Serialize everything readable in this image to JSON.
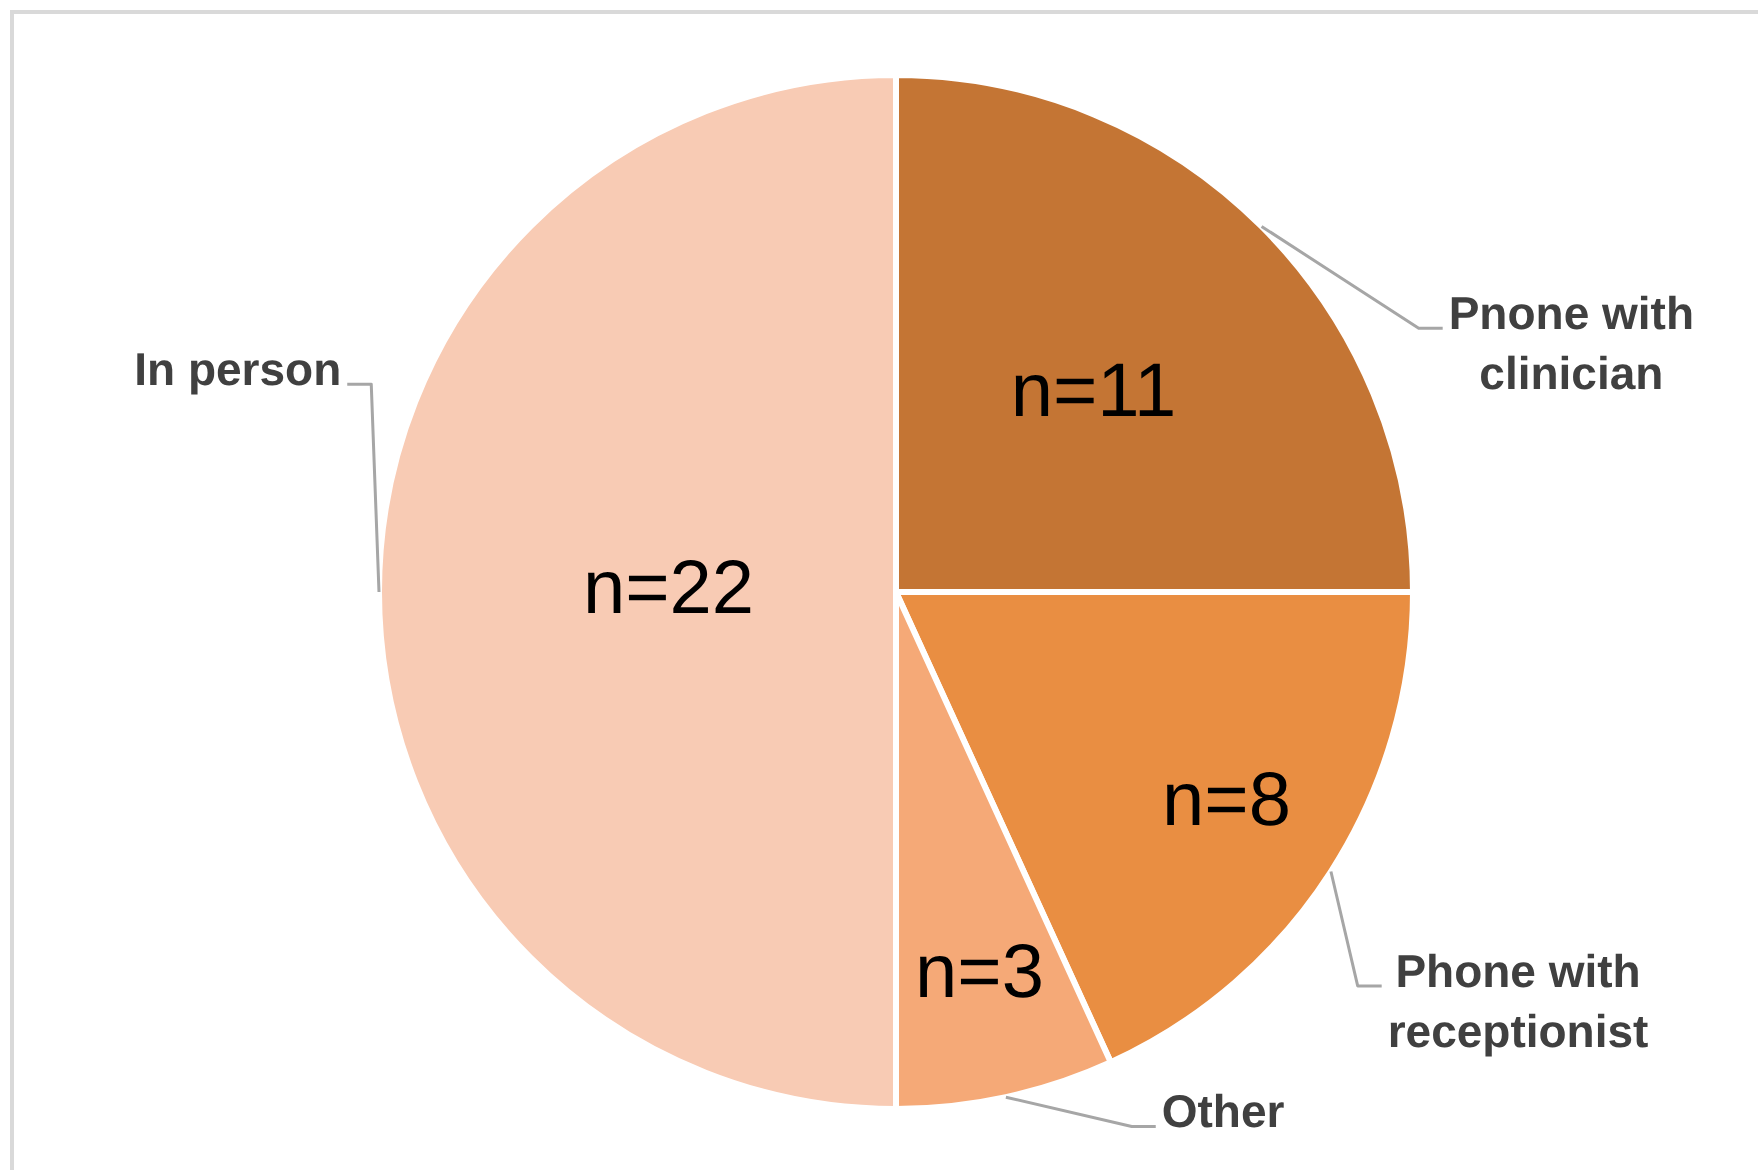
{
  "chart_data": {
    "type": "pie",
    "categories": [
      "Pnone with clinician",
      "Phone with receptionist",
      "Other",
      "In person"
    ],
    "values": [
      11,
      8,
      3,
      22
    ],
    "colors": [
      "#c47534",
      "#e98e42",
      "#f5a977",
      "#f8cbb4"
    ],
    "value_labels": [
      "n=11",
      "n=8",
      "n=3",
      "n=22"
    ]
  }
}
